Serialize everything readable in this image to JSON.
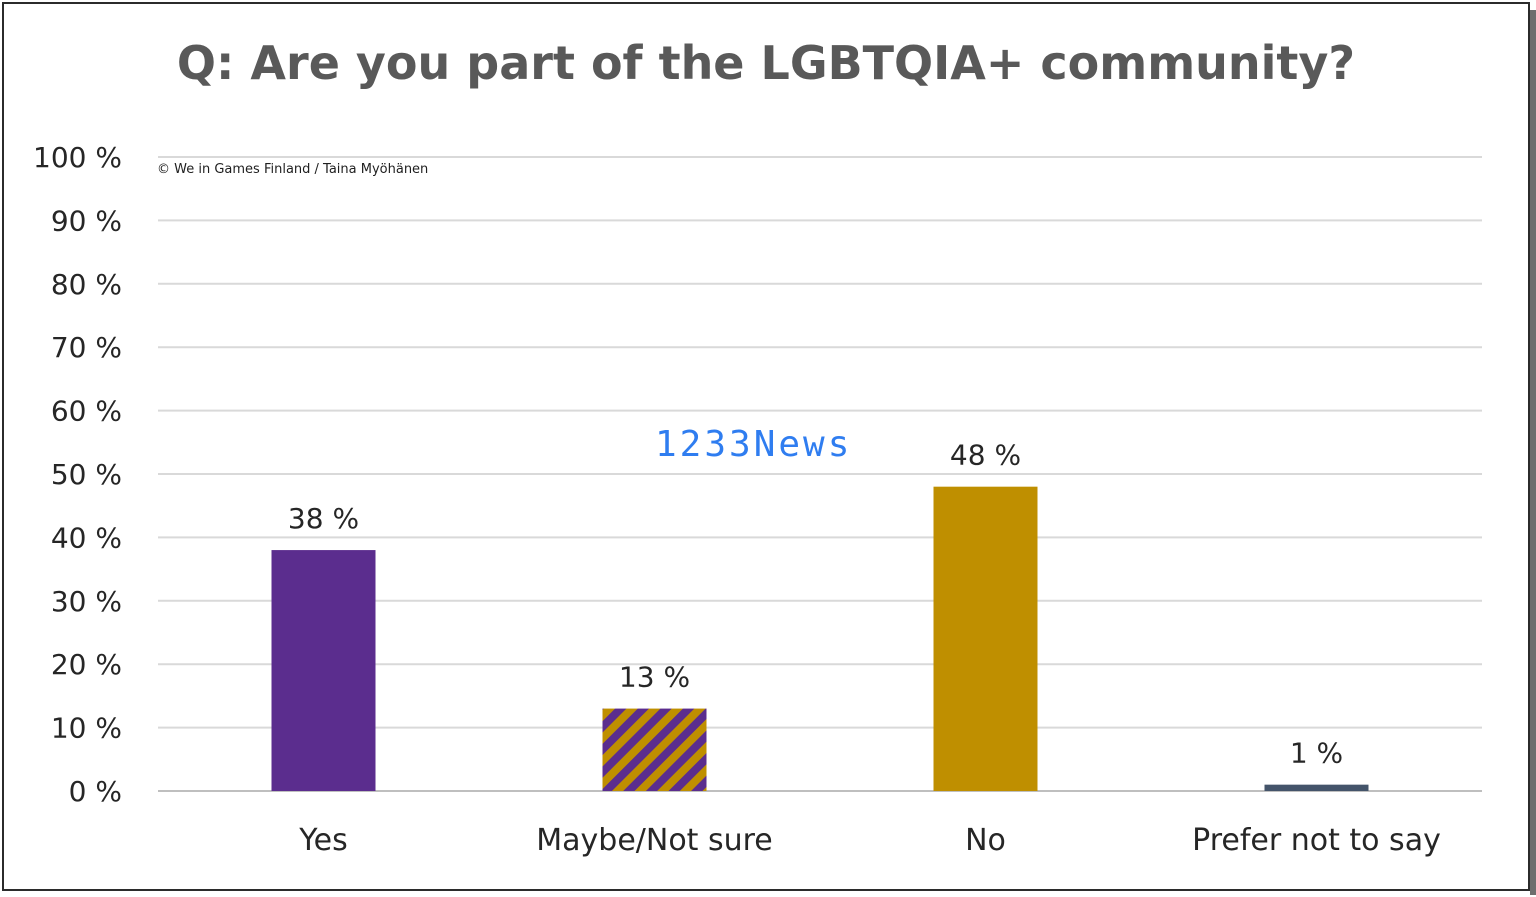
{
  "chart_data": {
    "type": "bar",
    "title": "Q: Are you part of the LGBTQIA+ community?",
    "categories": [
      "Yes",
      "Maybe/Not sure",
      "No",
      "Prefer not to say"
    ],
    "values": [
      38,
      13,
      48,
      1
    ],
    "data_labels": [
      "38 %",
      "13 %",
      "48 %",
      "1 %"
    ],
    "ylim": [
      0,
      100
    ],
    "y_ticks": [
      0,
      10,
      20,
      30,
      40,
      50,
      60,
      70,
      80,
      90,
      100
    ],
    "y_tick_labels": [
      "0 %",
      "10 %",
      "20 %",
      "30 %",
      "40 %",
      "50 %",
      "60 %",
      "70 %",
      "80 %",
      "90 %",
      "100 %"
    ],
    "xlabel": "",
    "ylabel": "",
    "grid": true,
    "legend": "none",
    "bar_colors": [
      "#5b2d8e",
      "pattern",
      "#bf8f00",
      "#44546a"
    ],
    "pattern_colors": [
      "#bf8f00",
      "#5b2d8e"
    ],
    "annotations": [
      "© We in Games Finland / Taina Myöhänen"
    ]
  },
  "watermark": "1233News"
}
